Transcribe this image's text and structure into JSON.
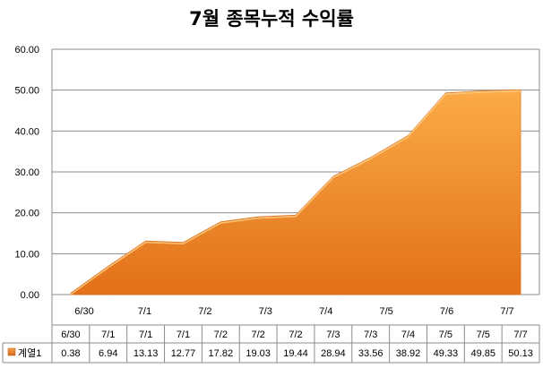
{
  "chart_data": {
    "type": "area",
    "title": "7월 종목누적 수익률",
    "series": [
      {
        "name": "계열1",
        "values": [
          0.38,
          6.94,
          13.13,
          12.77,
          17.82,
          19.03,
          19.44,
          28.94,
          33.56,
          38.92,
          49.33,
          49.85,
          50.13
        ]
      }
    ],
    "categories": [
      "6/30",
      "7/1",
      "7/1",
      "7/1",
      "7/2",
      "7/2",
      "7/2",
      "7/3",
      "7/3",
      "7/4",
      "7/5",
      "7/5",
      "7/7"
    ],
    "x_axis_labels": [
      "6/30",
      "7/1",
      "7/2",
      "7/3",
      "7/4",
      "7/5",
      "7/6",
      "7/7"
    ],
    "y_tick_labels": [
      "0.00",
      "10.00",
      "20.00",
      "30.00",
      "40.00",
      "50.00",
      "60.00"
    ],
    "ylim": [
      0,
      60
    ],
    "grid": true,
    "data_table": true,
    "colors": {
      "area_top": "#f9a341",
      "area_bottom": "#e0701c",
      "grid": "#8c8c8c",
      "legend_key": "#e57a22"
    }
  }
}
